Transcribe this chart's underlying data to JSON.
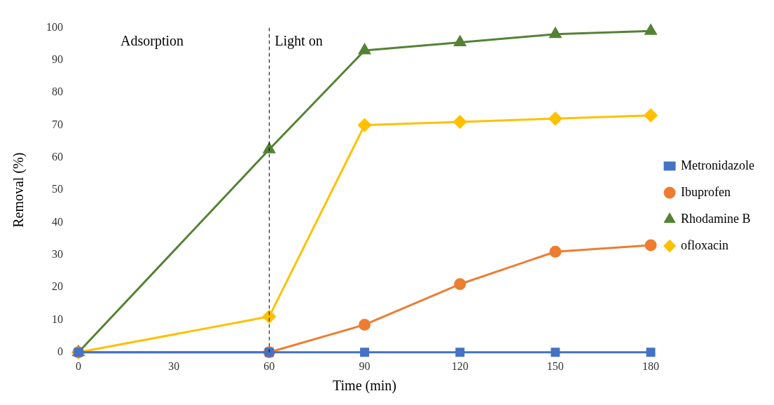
{
  "chart_data": {
    "type": "line",
    "xlabel": "Time (min)",
    "ylabel": "Removal (%)",
    "x": [
      0,
      60,
      90,
      120,
      150,
      180
    ],
    "series": [
      {
        "name": "Metronidazole",
        "color": "#4472c4",
        "marker": "square",
        "values": [
          0,
          0,
          0,
          0,
          0,
          0
        ]
      },
      {
        "name": "Ibuprofen",
        "color": "#ed7d31",
        "marker": "circle",
        "values": [
          0,
          0,
          8.5,
          21,
          31,
          33
        ]
      },
      {
        "name": "Rhodamine B",
        "color": "#548235",
        "marker": "triangle",
        "values": [
          0,
          62.5,
          93,
          95.5,
          98,
          99
        ]
      },
      {
        "name": "ofloxacin",
        "color": "#ffc000",
        "marker": "diamond",
        "values": [
          0,
          11,
          70,
          71,
          72,
          73
        ]
      }
    ],
    "xlim": [
      0,
      180
    ],
    "xticks": [
      0,
      30,
      60,
      90,
      120,
      150,
      180
    ],
    "ylim": [
      0,
      100
    ],
    "yticks": [
      0,
      10,
      20,
      30,
      40,
      50,
      60,
      70,
      80,
      90,
      100
    ],
    "grid": false,
    "legend": "right",
    "ref_lines": [
      {
        "axis": "x",
        "value": 60,
        "line_style": "dashed",
        "color": "#000000",
        "label": "Light on"
      }
    ],
    "annotations": [
      "Adsorption"
    ]
  }
}
